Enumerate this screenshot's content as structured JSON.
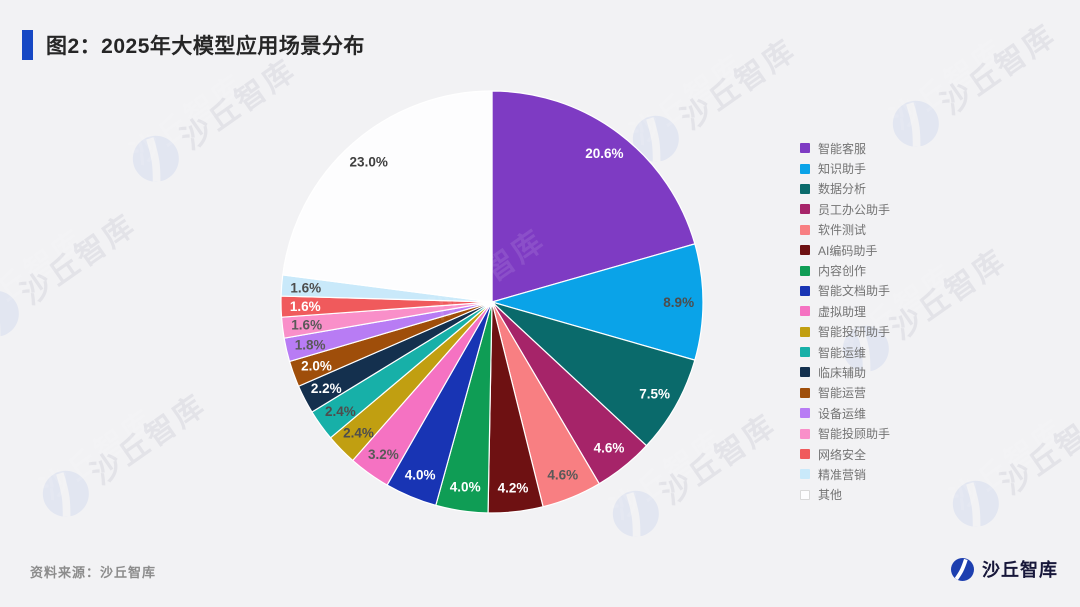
{
  "header": {
    "title": "图2：2025年大模型应用场景分布",
    "accent_color": "#1648C4"
  },
  "chart_data": {
    "type": "pie",
    "title": "图2：2025年大模型应用场景分布",
    "start_angle": "12-o-clock, clockwise",
    "value_suffix": "%",
    "legend_position": "right",
    "slices": [
      {
        "label": "智能客服",
        "value": 20.6,
        "color": "#7E3BC3",
        "label_color": "#FFFFFF"
      },
      {
        "label": "知识助手",
        "value": 8.9,
        "color": "#0AA3E8",
        "label_color": "#4D4D4D"
      },
      {
        "label": "数据分析",
        "value": 7.5,
        "color": "#0A6A6B",
        "label_color": "#FFFFFF"
      },
      {
        "label": "员工办公助手",
        "value": 4.6,
        "color": "#A62469",
        "label_color": "#FFFFFF"
      },
      {
        "label": "软件测试",
        "value": 4.6,
        "color": "#F87F82",
        "label_color": "#595959"
      },
      {
        "label": "AI编码助手",
        "value": 4.2,
        "color": "#6E1112",
        "label_color": "#FFFFFF"
      },
      {
        "label": "内容创作",
        "value": 4.0,
        "color": "#0F9D55",
        "label_color": "#FFFFFF"
      },
      {
        "label": "智能文档助手",
        "value": 4.0,
        "color": "#1834B4",
        "label_color": "#FFFFFF"
      },
      {
        "label": "虚拟助理",
        "value": 3.2,
        "color": "#F572C2",
        "label_color": "#595959"
      },
      {
        "label": "智能投研助手",
        "value": 2.4,
        "color": "#C19F11",
        "label_color": "#4D4D4D"
      },
      {
        "label": "智能运维",
        "value": 2.4,
        "color": "#17B0A8",
        "label_color": "#4D4D4D"
      },
      {
        "label": "临床辅助",
        "value": 2.2,
        "color": "#14304E",
        "label_color": "#FFFFFF"
      },
      {
        "label": "智能运营",
        "value": 2.0,
        "color": "#9F4E0A",
        "label_color": "#FFFFFF"
      },
      {
        "label": "设备运维",
        "value": 1.8,
        "color": "#B87CF4",
        "label_color": "#595959"
      },
      {
        "label": "智能投顾助手",
        "value": 1.6,
        "color": "#F98FC9",
        "label_color": "#595959"
      },
      {
        "label": "网络安全",
        "value": 1.6,
        "color": "#F05A5C",
        "label_color": "#FFFFFF"
      },
      {
        "label": "精准营销",
        "value": 1.6,
        "color": "#C9E9FA",
        "label_color": "#4D4D4D"
      },
      {
        "label": "其他",
        "value": 23.0,
        "color": "#FDFDFE",
        "label_color": "#3F3F3F"
      }
    ]
  },
  "footer": {
    "source": "资料来源：沙丘智库"
  },
  "brand": {
    "name": "沙丘智库",
    "logo_color": "#1D3FAF"
  },
  "watermark": {
    "text": "沙丘智库",
    "logo_color": "#E2E6F1"
  }
}
